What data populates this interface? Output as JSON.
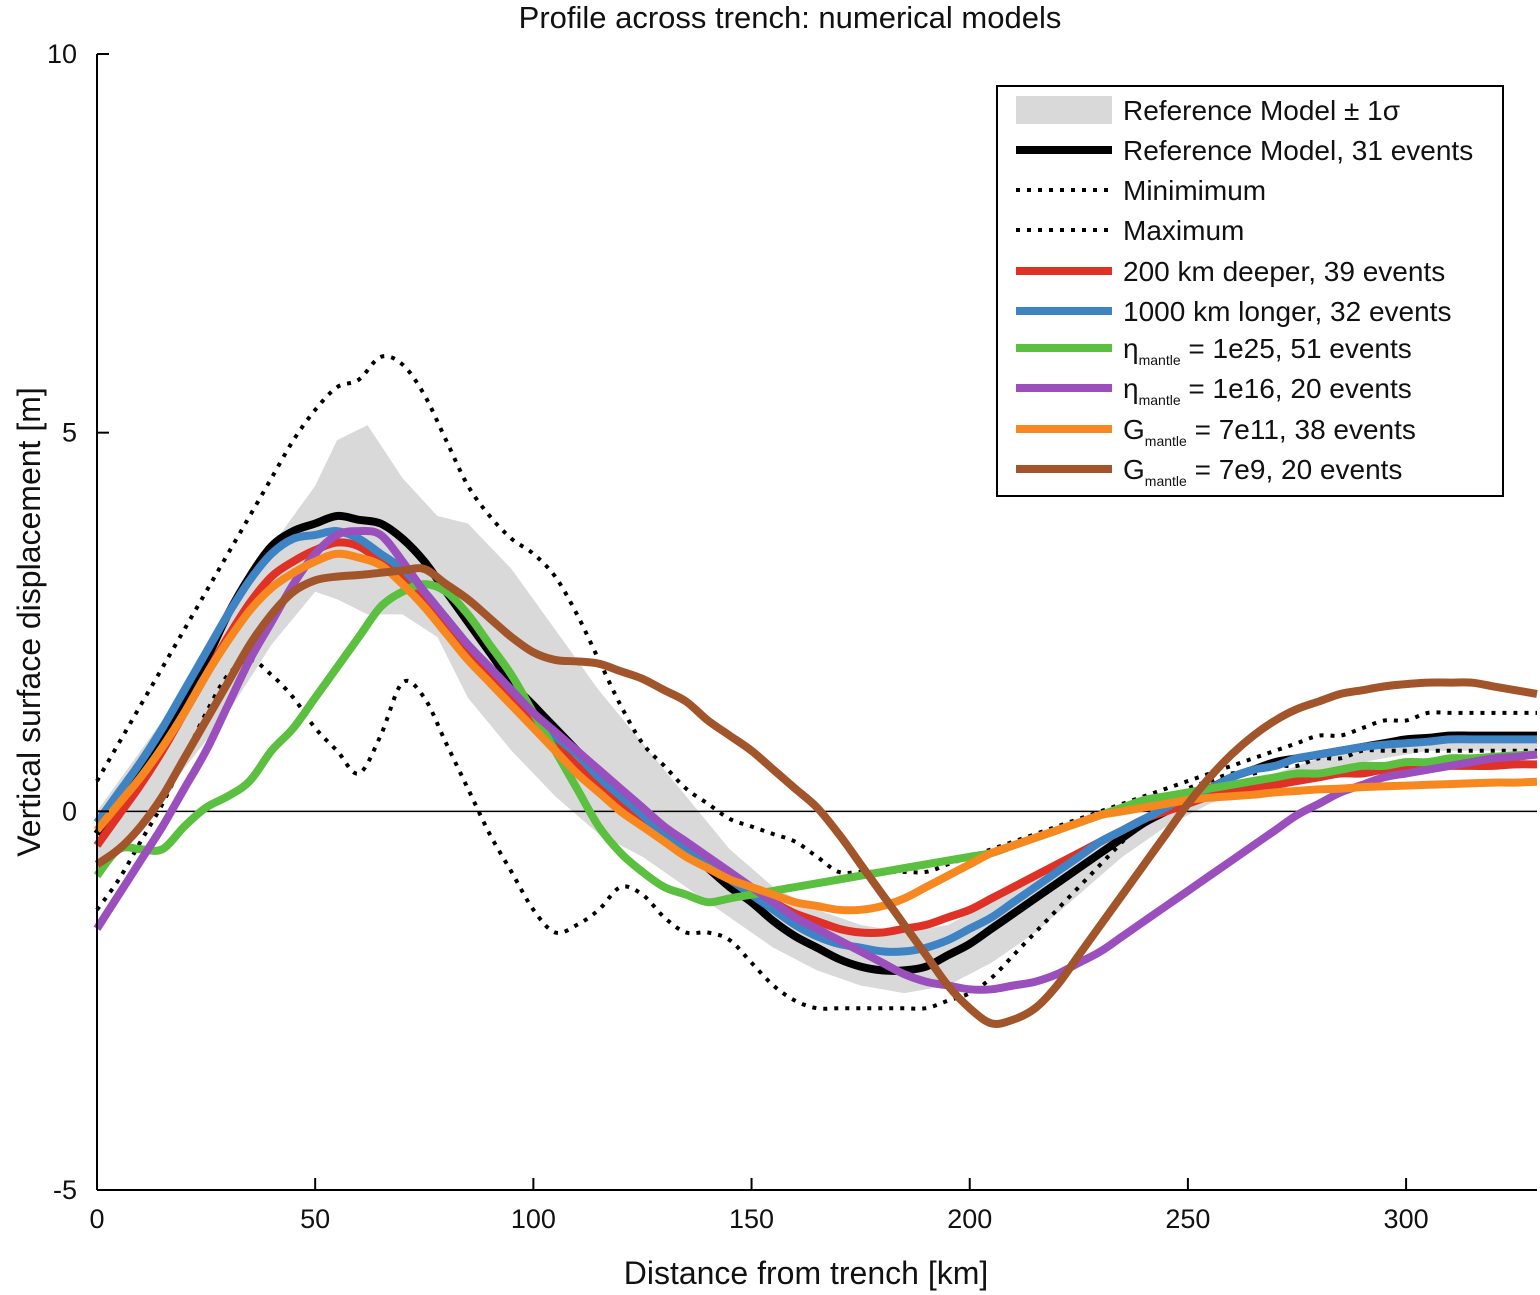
{
  "chart_data": {
    "type": "line",
    "title": "Profile across trench: numerical models",
    "xlabel": "Distance from trench [km]",
    "ylabel": "Vertical surface displacement [m]",
    "xlim": [
      0,
      330
    ],
    "ylim": [
      -5,
      10
    ],
    "xticks": [
      0,
      50,
      100,
      150,
      200,
      250,
      300
    ],
    "yticks": [
      -5,
      0,
      5,
      10
    ],
    "xtick_labels": [
      "0",
      "50",
      "100",
      "150",
      "200",
      "250",
      "300"
    ],
    "ytick_labels": [
      "-5",
      "0",
      "5",
      "10"
    ],
    "zero_line": true,
    "legend_position": "top-right",
    "band": {
      "name": "Reference Model ± 1σ",
      "color": "#d9d9d9",
      "x": [
        0,
        15,
        30,
        40,
        50,
        55,
        62,
        70,
        78,
        85,
        95,
        105,
        115,
        125,
        135,
        145,
        155,
        165,
        175,
        185,
        195,
        205,
        215,
        225,
        235,
        245,
        255,
        265,
        275,
        285,
        295,
        305,
        315,
        330
      ],
      "upper": [
        0,
        1.2,
        2.6,
        3.5,
        4.3,
        4.9,
        5.1,
        4.4,
        3.9,
        3.8,
        3.2,
        2.4,
        1.6,
        0.9,
        0.2,
        -0.5,
        -1.0,
        -1.3,
        -1.5,
        -1.6,
        -1.5,
        -1.2,
        -0.9,
        -0.6,
        -0.3,
        0.0,
        0.2,
        0.4,
        0.6,
        0.8,
        0.9,
        1.0,
        1.0,
        1.0
      ],
      "lower": [
        -0.8,
        0.2,
        1.3,
        2.2,
        2.9,
        2.8,
        2.6,
        2.6,
        2.3,
        1.5,
        0.8,
        0.2,
        -0.3,
        -0.6,
        -1.0,
        -1.4,
        -1.8,
        -2.1,
        -2.3,
        -2.4,
        -2.3,
        -2.0,
        -1.6,
        -1.1,
        -0.6,
        -0.2,
        0.1,
        0.3,
        0.5,
        0.6,
        0.7,
        0.8,
        0.8,
        0.8
      ]
    },
    "x": [
      0,
      5,
      10,
      15,
      20,
      25,
      30,
      35,
      40,
      45,
      50,
      55,
      60,
      65,
      70,
      75,
      80,
      85,
      90,
      95,
      100,
      105,
      110,
      115,
      120,
      125,
      130,
      135,
      140,
      145,
      150,
      155,
      160,
      165,
      170,
      175,
      180,
      185,
      190,
      195,
      200,
      205,
      210,
      215,
      220,
      225,
      230,
      235,
      240,
      245,
      250,
      255,
      260,
      265,
      270,
      275,
      280,
      285,
      290,
      295,
      300,
      305,
      310,
      315,
      320,
      325,
      330
    ],
    "series": [
      {
        "name": "Minimimum",
        "color": "#000000",
        "style": "dotted",
        "width": 4,
        "values": [
          -1.3,
          -0.9,
          -0.4,
          0.1,
          0.7,
          1.3,
          1.8,
          2.0,
          1.8,
          1.5,
          1.1,
          0.8,
          0.5,
          1.0,
          1.7,
          1.5,
          0.9,
          0.3,
          -0.3,
          -0.8,
          -1.3,
          -1.6,
          -1.5,
          -1.3,
          -1.0,
          -1.1,
          -1.4,
          -1.6,
          -1.6,
          -1.7,
          -2.0,
          -2.3,
          -2.5,
          -2.6,
          -2.6,
          -2.6,
          -2.6,
          -2.6,
          -2.6,
          -2.5,
          -2.4,
          -2.2,
          -1.9,
          -1.6,
          -1.3,
          -1.0,
          -0.7,
          -0.4,
          -0.1,
          0.1,
          0.3,
          0.4,
          0.5,
          0.5,
          0.6,
          0.6,
          0.7,
          0.7,
          0.8,
          0.8,
          0.8,
          0.8,
          0.8,
          0.8,
          0.8,
          0.8,
          0.8
        ]
      },
      {
        "name": "Maximum",
        "color": "#000000",
        "style": "dotted",
        "width": 4,
        "values": [
          0.4,
          0.9,
          1.4,
          1.9,
          2.4,
          2.9,
          3.4,
          3.9,
          4.4,
          4.9,
          5.3,
          5.6,
          5.7,
          6.0,
          5.9,
          5.5,
          4.9,
          4.3,
          3.9,
          3.6,
          3.4,
          3.1,
          2.6,
          2.0,
          1.4,
          0.9,
          0.6,
          0.3,
          0.1,
          -0.1,
          -0.2,
          -0.3,
          -0.4,
          -0.6,
          -0.8,
          -0.8,
          -0.8,
          -0.8,
          -0.8,
          -0.7,
          -0.6,
          -0.5,
          -0.4,
          -0.3,
          -0.2,
          -0.1,
          0.0,
          0.1,
          0.2,
          0.3,
          0.4,
          0.5,
          0.6,
          0.7,
          0.8,
          0.9,
          1.0,
          1.0,
          1.1,
          1.2,
          1.2,
          1.3,
          1.3,
          1.3,
          1.3,
          1.3,
          1.3
        ]
      },
      {
        "name": "Reference Model, 31 events",
        "color": "#000000",
        "style": "solid",
        "width": 8,
        "values": [
          -0.3,
          0.1,
          0.5,
          1.0,
          1.5,
          2.0,
          2.6,
          3.1,
          3.5,
          3.7,
          3.8,
          3.9,
          3.85,
          3.8,
          3.6,
          3.3,
          2.9,
          2.5,
          2.1,
          1.7,
          1.4,
          1.1,
          0.8,
          0.5,
          0.25,
          0.0,
          -0.25,
          -0.5,
          -0.75,
          -1.0,
          -1.2,
          -1.45,
          -1.65,
          -1.8,
          -1.95,
          -2.05,
          -2.1,
          -2.1,
          -2.05,
          -1.9,
          -1.75,
          -1.55,
          -1.35,
          -1.15,
          -0.95,
          -0.75,
          -0.55,
          -0.35,
          -0.15,
          0.0,
          0.15,
          0.3,
          0.45,
          0.55,
          0.65,
          0.7,
          0.75,
          0.8,
          0.85,
          0.9,
          0.95,
          0.97,
          1.0,
          1.0,
          1.0,
          1.0,
          1.0
        ]
      },
      {
        "name": "200 km deeper, 39 events",
        "color": "#e03127",
        "style": "solid",
        "width": 8,
        "values": [
          -0.45,
          -0.05,
          0.35,
          0.8,
          1.3,
          1.8,
          2.3,
          2.75,
          3.1,
          3.3,
          3.45,
          3.55,
          3.5,
          3.3,
          3.1,
          2.8,
          2.45,
          2.1,
          1.8,
          1.5,
          1.2,
          0.9,
          0.6,
          0.35,
          0.1,
          -0.15,
          -0.35,
          -0.55,
          -0.75,
          -0.9,
          -1.05,
          -1.2,
          -1.35,
          -1.45,
          -1.55,
          -1.6,
          -1.6,
          -1.55,
          -1.5,
          -1.4,
          -1.3,
          -1.15,
          -1.0,
          -0.85,
          -0.7,
          -0.55,
          -0.4,
          -0.25,
          -0.1,
          0.0,
          0.1,
          0.2,
          0.25,
          0.3,
          0.35,
          0.4,
          0.45,
          0.5,
          0.5,
          0.55,
          0.55,
          0.6,
          0.6,
          0.6,
          0.6,
          0.62,
          0.62
        ]
      },
      {
        "name": "1000 km longer, 32 events",
        "color": "#3e84c4",
        "style": "solid",
        "width": 8,
        "values": [
          -0.15,
          0.25,
          0.65,
          1.1,
          1.6,
          2.1,
          2.6,
          3.05,
          3.4,
          3.6,
          3.65,
          3.7,
          3.6,
          3.4,
          3.2,
          2.9,
          2.55,
          2.2,
          1.9,
          1.6,
          1.3,
          1.0,
          0.75,
          0.45,
          0.2,
          -0.05,
          -0.3,
          -0.5,
          -0.7,
          -0.9,
          -1.1,
          -1.3,
          -1.5,
          -1.65,
          -1.75,
          -1.8,
          -1.85,
          -1.85,
          -1.8,
          -1.7,
          -1.55,
          -1.4,
          -1.2,
          -1.0,
          -0.8,
          -0.6,
          -0.4,
          -0.25,
          -0.1,
          0.05,
          0.2,
          0.3,
          0.45,
          0.55,
          0.6,
          0.7,
          0.75,
          0.8,
          0.85,
          0.88,
          0.9,
          0.92,
          0.95,
          0.95,
          0.95,
          0.95,
          0.95
        ]
      },
      {
        "name": "η_mantle = 1e25, 51 events",
        "color": "#5bbf3f",
        "style": "solid",
        "width": 8,
        "values": [
          -0.85,
          -0.5,
          -0.5,
          -0.5,
          -0.2,
          0.05,
          0.2,
          0.4,
          0.8,
          1.1,
          1.5,
          1.9,
          2.3,
          2.7,
          2.9,
          3.0,
          2.9,
          2.6,
          2.2,
          1.8,
          1.3,
          0.8,
          0.3,
          -0.2,
          -0.55,
          -0.8,
          -1.0,
          -1.1,
          -1.2,
          -1.15,
          -1.1,
          -1.05,
          -1.0,
          -0.95,
          -0.9,
          -0.85,
          -0.8,
          -0.75,
          -0.7,
          -0.65,
          -0.6,
          -0.55,
          -0.45,
          -0.35,
          -0.25,
          -0.15,
          -0.05,
          0.05,
          0.15,
          0.2,
          0.25,
          0.3,
          0.35,
          0.4,
          0.45,
          0.5,
          0.5,
          0.55,
          0.6,
          0.6,
          0.65,
          0.65,
          0.7,
          0.7,
          0.72,
          0.74,
          0.75
        ]
      },
      {
        "name": "η_mantle = 1e16, 20 events",
        "color": "#9a4fbd",
        "style": "solid",
        "width": 8,
        "values": [
          -1.55,
          -1.1,
          -0.65,
          -0.2,
          0.3,
          0.8,
          1.4,
          2.0,
          2.5,
          3.0,
          3.4,
          3.65,
          3.7,
          3.65,
          3.3,
          2.9,
          2.55,
          2.2,
          1.9,
          1.6,
          1.3,
          1.05,
          0.8,
          0.55,
          0.3,
          0.05,
          -0.2,
          -0.4,
          -0.6,
          -0.8,
          -1.0,
          -1.2,
          -1.4,
          -1.55,
          -1.7,
          -1.85,
          -2.0,
          -2.15,
          -2.25,
          -2.3,
          -2.35,
          -2.35,
          -2.3,
          -2.25,
          -2.15,
          -2.0,
          -1.85,
          -1.65,
          -1.45,
          -1.25,
          -1.05,
          -0.85,
          -0.65,
          -0.45,
          -0.25,
          -0.05,
          0.1,
          0.25,
          0.35,
          0.45,
          0.5,
          0.55,
          0.6,
          0.65,
          0.7,
          0.72,
          0.75
        ]
      },
      {
        "name": "G_mantle = 7e11, 38 events",
        "color": "#f7881f",
        "style": "solid",
        "width": 8,
        "values": [
          -0.25,
          0.1,
          0.45,
          0.85,
          1.3,
          1.8,
          2.25,
          2.65,
          2.95,
          3.15,
          3.3,
          3.4,
          3.35,
          3.25,
          3.0,
          2.7,
          2.35,
          2.0,
          1.7,
          1.4,
          1.1,
          0.8,
          0.5,
          0.25,
          0.0,
          -0.2,
          -0.4,
          -0.6,
          -0.75,
          -0.9,
          -1.0,
          -1.1,
          -1.2,
          -1.25,
          -1.3,
          -1.3,
          -1.25,
          -1.15,
          -1.0,
          -0.85,
          -0.7,
          -0.55,
          -0.45,
          -0.35,
          -0.25,
          -0.15,
          -0.05,
          0.0,
          0.05,
          0.1,
          0.15,
          0.18,
          0.2,
          0.22,
          0.25,
          0.27,
          0.29,
          0.3,
          0.32,
          0.33,
          0.34,
          0.35,
          0.36,
          0.37,
          0.38,
          0.38,
          0.39
        ]
      },
      {
        "name": "G_mantle = 7e9, 20 events",
        "color": "#a2552a",
        "style": "solid",
        "width": 8,
        "values": [
          -0.7,
          -0.5,
          -0.2,
          0.2,
          0.7,
          1.2,
          1.7,
          2.2,
          2.6,
          2.9,
          3.05,
          3.1,
          3.12,
          3.15,
          3.18,
          3.2,
          3.0,
          2.8,
          2.55,
          2.3,
          2.1,
          2.0,
          1.98,
          1.95,
          1.85,
          1.75,
          1.6,
          1.45,
          1.2,
          1.0,
          0.8,
          0.55,
          0.3,
          0.05,
          -0.3,
          -0.7,
          -1.1,
          -1.5,
          -1.9,
          -2.3,
          -2.6,
          -2.8,
          -2.75,
          -2.6,
          -2.3,
          -1.9,
          -1.5,
          -1.1,
          -0.7,
          -0.3,
          0.1,
          0.45,
          0.75,
          1.0,
          1.2,
          1.35,
          1.45,
          1.55,
          1.6,
          1.65,
          1.68,
          1.7,
          1.7,
          1.7,
          1.65,
          1.6,
          1.55
        ]
      }
    ],
    "legend": [
      {
        "key": "band",
        "label": "Reference Model ± 1σ",
        "color": "#d9d9d9",
        "style": "band"
      },
      {
        "key": "ref",
        "label": "Reference Model, 31 events",
        "color": "#000000",
        "style": "solid"
      },
      {
        "key": "min",
        "label": "Minimimum",
        "color": "#000000",
        "style": "dotted"
      },
      {
        "key": "max",
        "label": "Maximum",
        "color": "#000000",
        "style": "dotted"
      },
      {
        "key": "deeper",
        "label": "200 km deeper, 39 events",
        "color": "#e03127",
        "style": "solid"
      },
      {
        "key": "longer",
        "label": "1000 km longer, 32 events",
        "color": "#3e84c4",
        "style": "solid"
      },
      {
        "key": "eta25",
        "label_main": "η",
        "label_sub": "mantle",
        "label_rest": " = 1e25, 51 events",
        "color": "#5bbf3f",
        "style": "solid"
      },
      {
        "key": "eta16",
        "label_main": "η",
        "label_sub": "mantle",
        "label_rest": " = 1e16, 20 events",
        "color": "#9a4fbd",
        "style": "solid"
      },
      {
        "key": "g11",
        "label_main": "G",
        "label_sub": "mantle",
        "label_rest": " = 7e11, 38 events",
        "color": "#f7881f",
        "style": "solid"
      },
      {
        "key": "g9",
        "label_main": "G",
        "label_sub": "mantle",
        "label_rest": " = 7e9, 20 events",
        "color": "#a2552a",
        "style": "solid"
      }
    ]
  }
}
